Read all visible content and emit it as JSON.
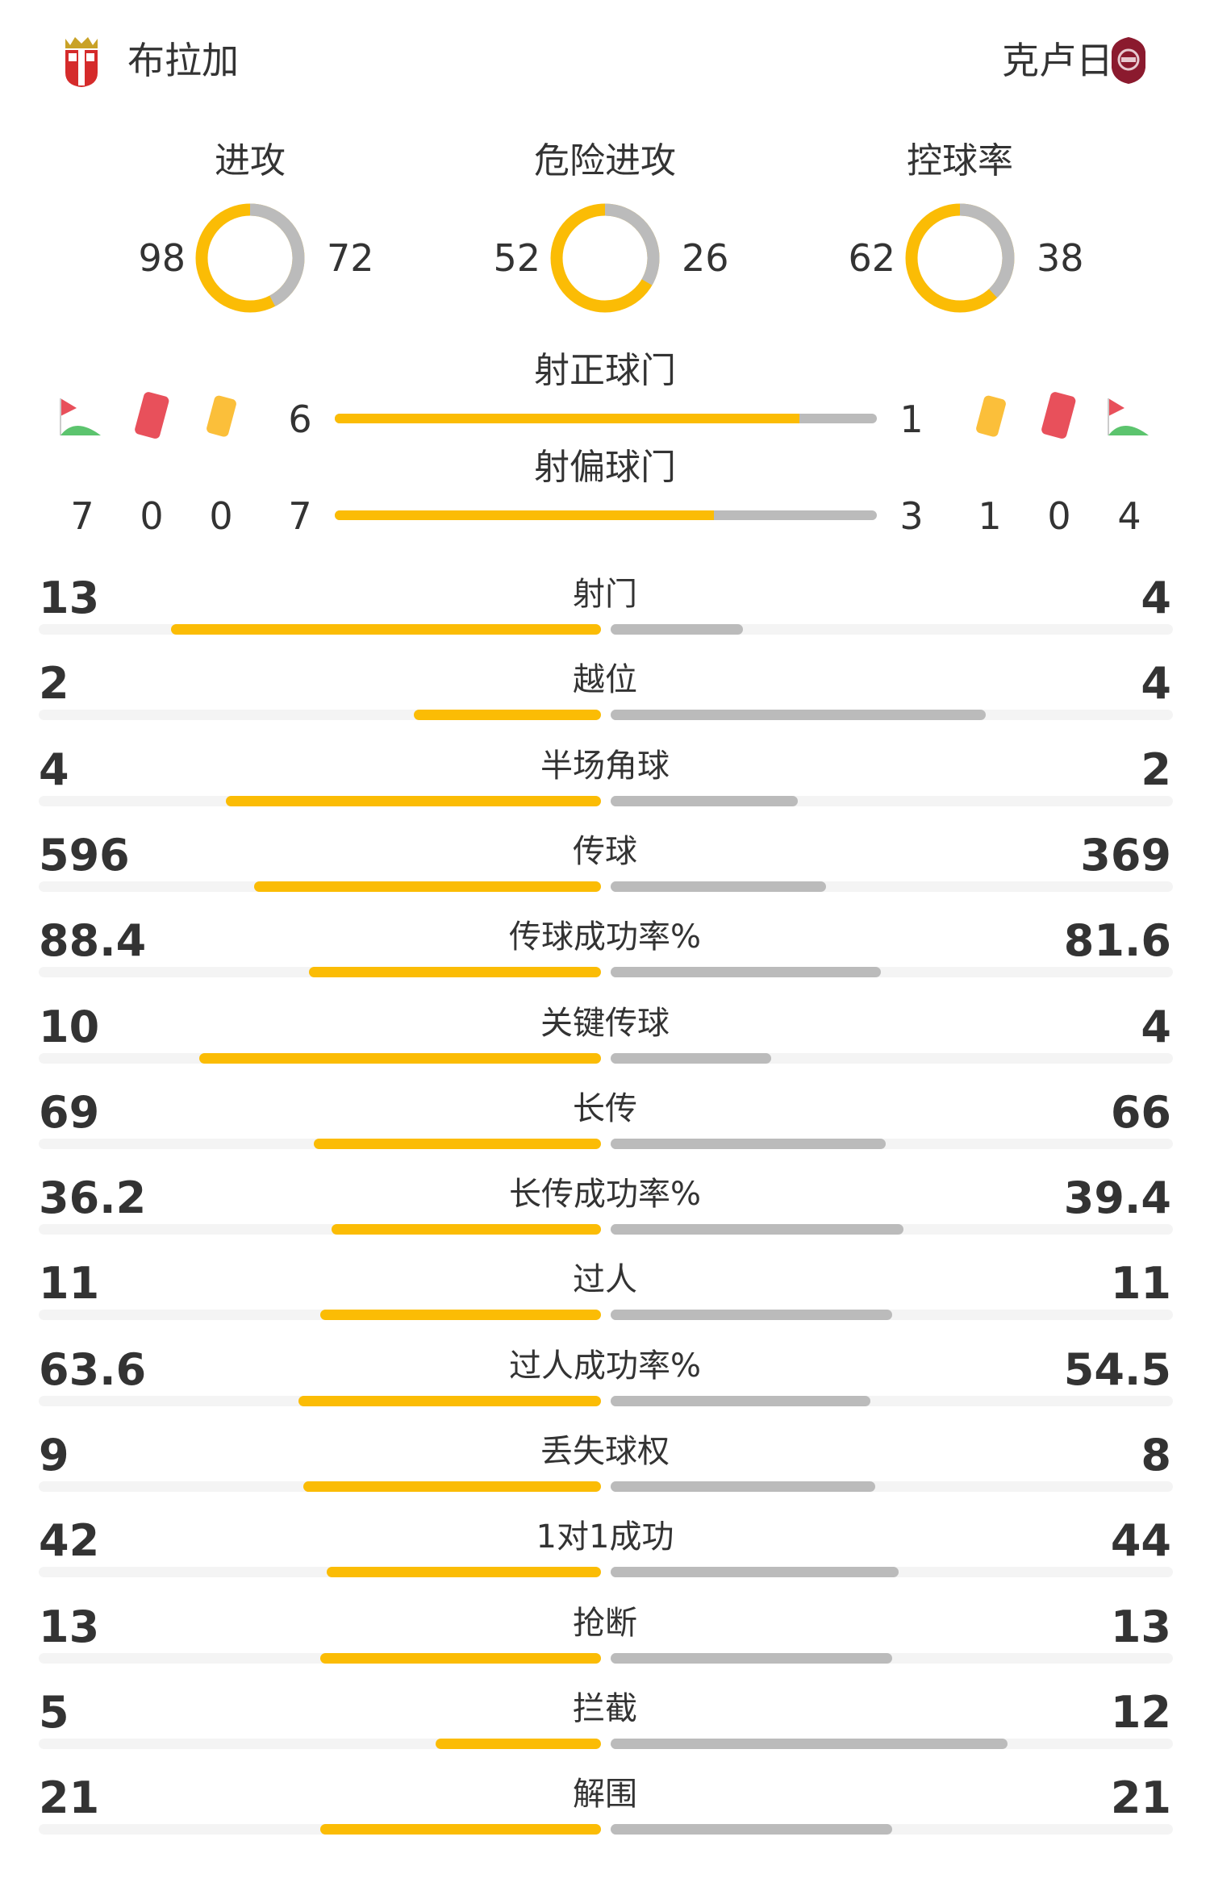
{
  "header": {
    "home_team": "布拉加",
    "away_team": "克卢日",
    "home_logo": "braga-crest",
    "away_logo": "cfr-cluj-crest"
  },
  "colors": {
    "home": "#fbbc05",
    "away": "#bbbbbb",
    "track": "#f4f4f4",
    "yellow_card": "#fbbf3a",
    "red_card": "#e8505b",
    "corner_flag": "#e8505b",
    "corner_grass": "#5cc46e"
  },
  "metrics": [
    {
      "label": "进攻",
      "home": 98,
      "away": 72
    },
    {
      "label": "危险进攻",
      "home": 52,
      "away": 26
    },
    {
      "label": "控球率",
      "home": 62,
      "away": 38
    }
  ],
  "shots_on_target": {
    "label": "射正球门",
    "home": 6,
    "away": 1
  },
  "shots_off_target": {
    "label": "射偏球门",
    "home": 7,
    "away": 3
  },
  "home_counts": {
    "corners": 7,
    "red_cards": 0,
    "yellow_cards": 0
  },
  "away_counts": {
    "yellow_cards": 1,
    "red_cards": 0,
    "corners": 4
  },
  "icons": {
    "corner": "corner-flag-icon",
    "red": "red-card-icon",
    "yellow": "yellow-card-icon"
  },
  "stats": [
    {
      "label": "射门",
      "home": "13",
      "away": "4"
    },
    {
      "label": "越位",
      "home": "2",
      "away": "4"
    },
    {
      "label": "半场角球",
      "home": "4",
      "away": "2"
    },
    {
      "label": "传球",
      "home": "596",
      "away": "369"
    },
    {
      "label": "传球成功率%",
      "home": "88.4",
      "away": "81.6"
    },
    {
      "label": "关键传球",
      "home": "10",
      "away": "4"
    },
    {
      "label": "长传",
      "home": "69",
      "away": "66"
    },
    {
      "label": "长传成功率%",
      "home": "36.2",
      "away": "39.4"
    },
    {
      "label": "过人",
      "home": "11",
      "away": "11"
    },
    {
      "label": "过人成功率%",
      "home": "63.6",
      "away": "54.5"
    },
    {
      "label": "丢失球权",
      "home": "9",
      "away": "8"
    },
    {
      "label": "1对1成功",
      "home": "42",
      "away": "44"
    },
    {
      "label": "抢断",
      "home": "13",
      "away": "13"
    },
    {
      "label": "拦截",
      "home": "5",
      "away": "12"
    },
    {
      "label": "解围",
      "home": "21",
      "away": "21"
    }
  ]
}
